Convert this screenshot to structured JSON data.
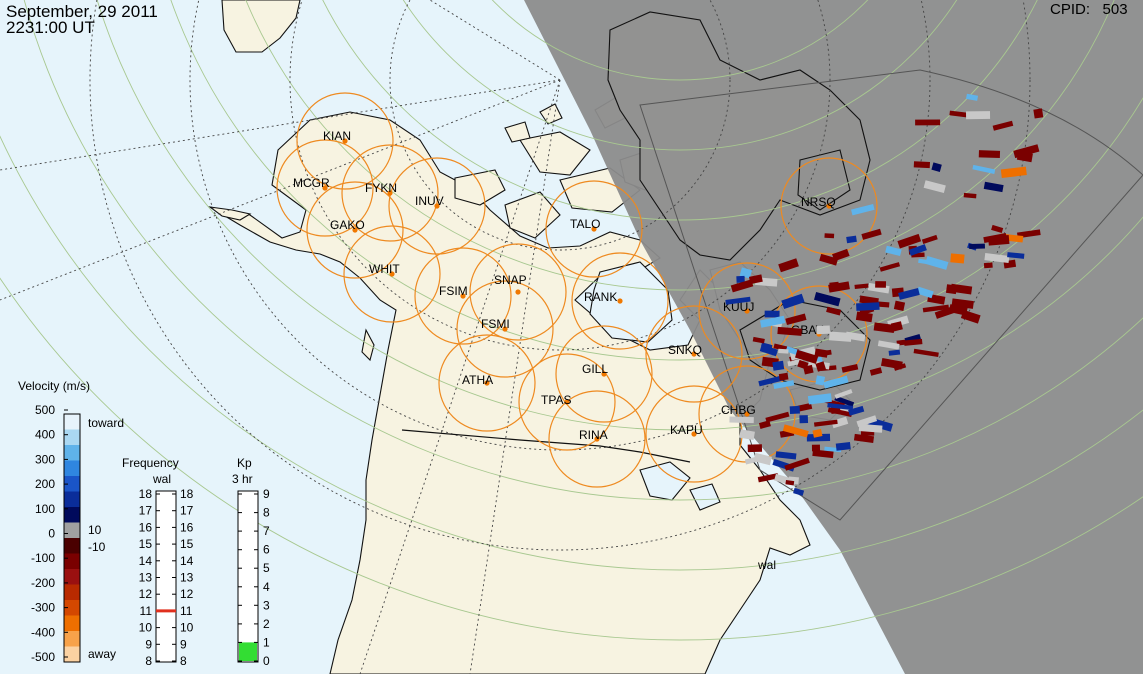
{
  "header": {
    "date": "September, 29 2011",
    "time": "2231:00 UT",
    "cpid_label": "CPID:",
    "cpid_value": "503"
  },
  "stations": [
    {
      "code": "KIAN"
    },
    {
      "code": "MCGR"
    },
    {
      "code": "FYKN"
    },
    {
      "code": "INUV"
    },
    {
      "code": "GAKO"
    },
    {
      "code": "WHIT"
    },
    {
      "code": "FSIM"
    },
    {
      "code": "SNAP"
    },
    {
      "code": "FSMI"
    },
    {
      "code": "TALO"
    },
    {
      "code": "RANK"
    },
    {
      "code": "ATHA"
    },
    {
      "code": "GILL"
    },
    {
      "code": "TPAS"
    },
    {
      "code": "RINA"
    },
    {
      "code": "SNKQ"
    },
    {
      "code": "KAPU"
    },
    {
      "code": "CHBG"
    },
    {
      "code": "KUUJ"
    },
    {
      "code": "GBAY"
    },
    {
      "code": "NRSQ"
    }
  ],
  "radar_label": "wal",
  "velocity_scale": {
    "title": "Velocity (m/s)",
    "ticks": [
      "500",
      "400",
      "300",
      "200",
      "100",
      "0",
      "-100",
      "-200",
      "-300",
      "-400",
      "-500"
    ],
    "toward": "toward",
    "away": "away",
    "pos_mark": "10",
    "neg_mark": "-10",
    "colors": [
      "#e7f3fb",
      "#aad8f2",
      "#5fb3ea",
      "#2f86e0",
      "#1a55c8",
      "#0a2d9a",
      "#000a5c",
      "#a0a0a0",
      "#4a0000",
      "#7a0000",
      "#9a1010",
      "#b82a00",
      "#d44800",
      "#ee6f00",
      "#f7a24a",
      "#fbd2a2"
    ]
  },
  "frequency_scale": {
    "title": "Frequency",
    "subtitle": "wal",
    "left_ticks": [
      "18",
      "17",
      "16",
      "15",
      "14",
      "13",
      "12",
      "11",
      "10",
      "9",
      "8"
    ],
    "right_ticks": [
      "18",
      "17",
      "16",
      "15",
      "14",
      "13",
      "12",
      "11",
      "10",
      "9",
      "8"
    ],
    "current_mhz": 11
  },
  "kp_scale": {
    "title": "Kp",
    "subtitle": "3 hr",
    "ticks": [
      "9",
      "8",
      "7",
      "6",
      "5",
      "4",
      "3",
      "2",
      "1",
      "0"
    ],
    "current_kp": 1,
    "fill_color": "#33dd33"
  },
  "colors": {
    "ocean": "#e6f4fb",
    "land": "#f7f3e1",
    "night": "#8c8c8c",
    "circle": "#ee8a20",
    "station_dot": "#f07800",
    "grid": "#a8c890"
  }
}
